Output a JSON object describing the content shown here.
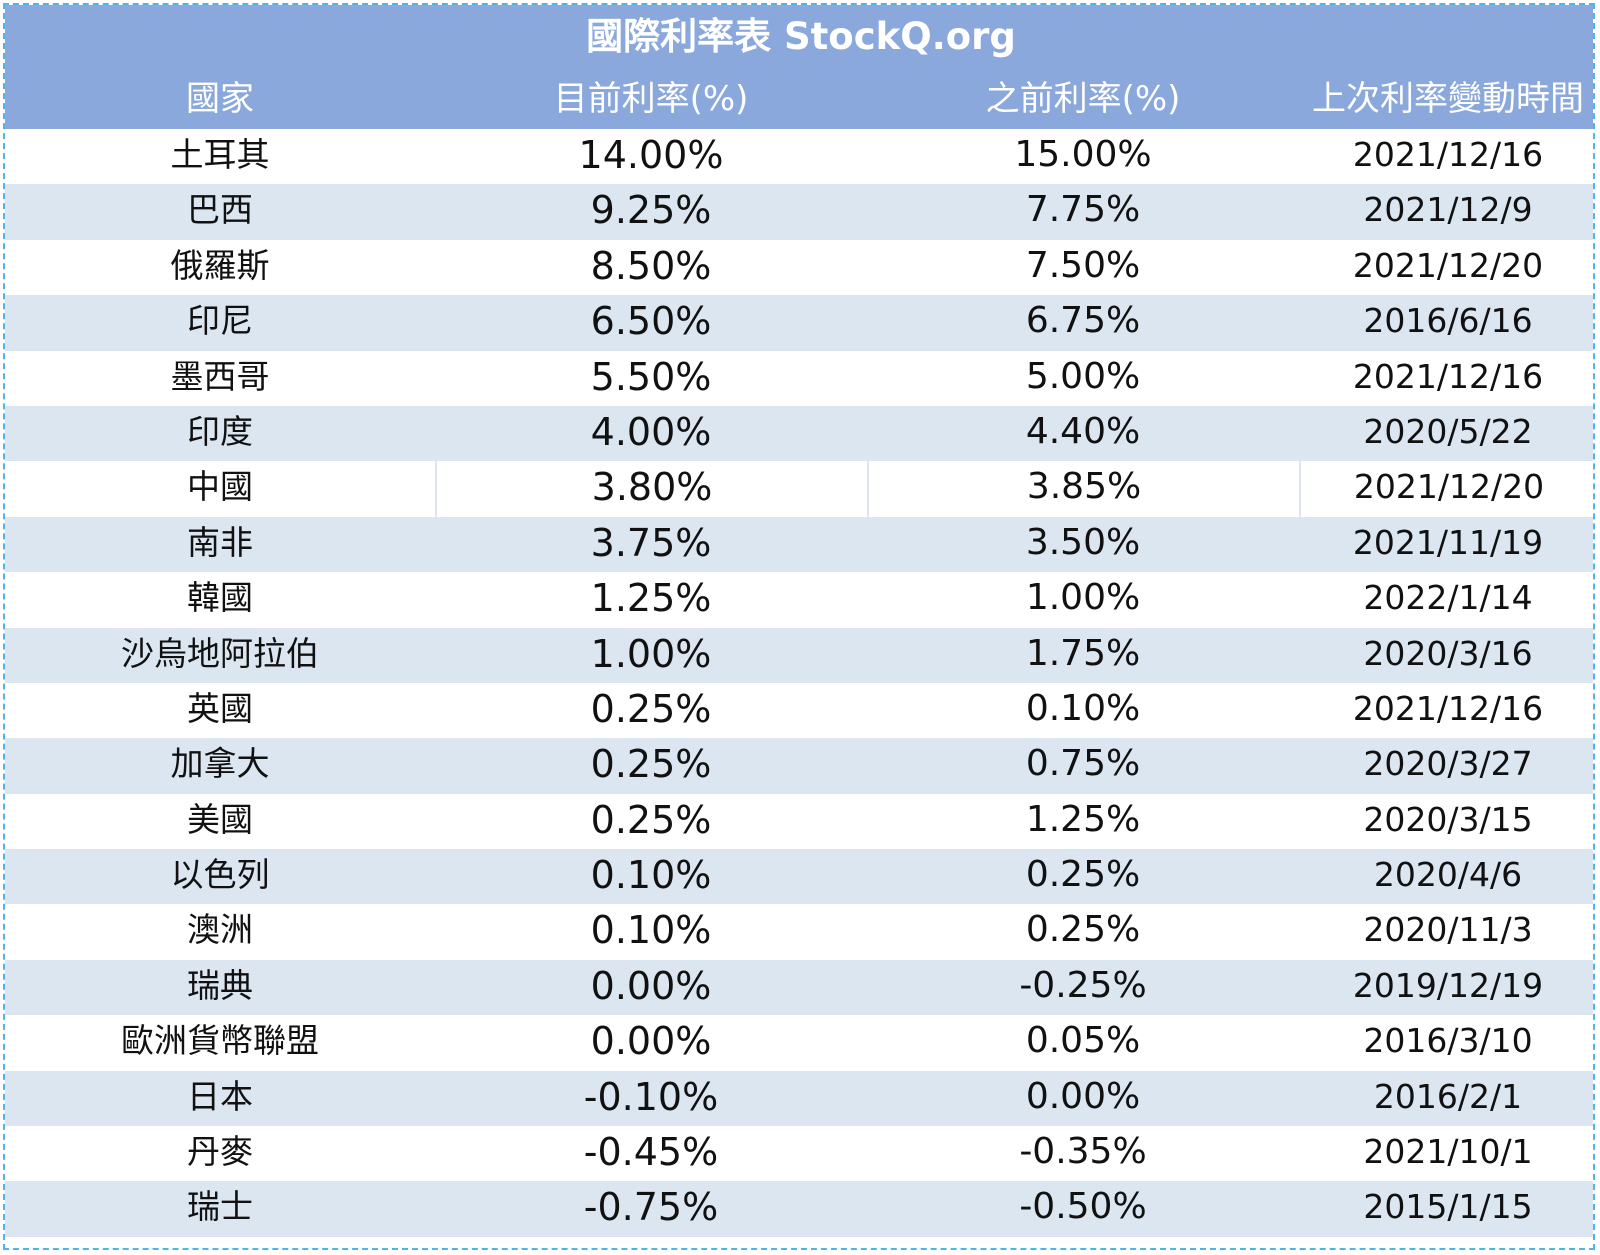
{
  "table": {
    "title": "國際利率表 StockQ.org",
    "headers": {
      "country": "國家",
      "current": "目前利率(%)",
      "previous": "之前利率(%)",
      "changed": "上次利率變動時間"
    },
    "rows": [
      {
        "country": "土耳其",
        "current": "14.00%",
        "previous": "15.00%",
        "changed": "2021/12/16"
      },
      {
        "country": "巴西",
        "current": "9.25%",
        "previous": "7.75%",
        "changed": "2021/12/9"
      },
      {
        "country": "俄羅斯",
        "current": "8.50%",
        "previous": "7.50%",
        "changed": "2021/12/20"
      },
      {
        "country": "印尼",
        "current": "6.50%",
        "previous": "6.75%",
        "changed": "2016/6/16"
      },
      {
        "country": "墨西哥",
        "current": "5.50%",
        "previous": "5.00%",
        "changed": "2021/12/16"
      },
      {
        "country": "印度",
        "current": "4.00%",
        "previous": "4.40%",
        "changed": "2020/5/22"
      },
      {
        "country": "中國",
        "current": "3.80%",
        "previous": "3.85%",
        "changed": "2021/12/20"
      },
      {
        "country": "南非",
        "current": "3.75%",
        "previous": "3.50%",
        "changed": "2021/11/19"
      },
      {
        "country": "韓國",
        "current": "1.25%",
        "previous": "1.00%",
        "changed": "2022/1/14"
      },
      {
        "country": "沙烏地阿拉伯",
        "current": "1.00%",
        "previous": "1.75%",
        "changed": "2020/3/16"
      },
      {
        "country": "英國",
        "current": "0.25%",
        "previous": "0.10%",
        "changed": "2021/12/16"
      },
      {
        "country": "加拿大",
        "current": "0.25%",
        "previous": "0.75%",
        "changed": "2020/3/27"
      },
      {
        "country": "美國",
        "current": "0.25%",
        "previous": "1.25%",
        "changed": "2020/3/15"
      },
      {
        "country": "以色列",
        "current": "0.10%",
        "previous": "0.25%",
        "changed": "2020/4/6"
      },
      {
        "country": "澳洲",
        "current": "0.10%",
        "previous": "0.25%",
        "changed": "2020/11/3"
      },
      {
        "country": "瑞典",
        "current": "0.00%",
        "previous": "-0.25%",
        "changed": "2019/12/19"
      },
      {
        "country": "歐洲貨幣聯盟",
        "current": "0.00%",
        "previous": "0.05%",
        "changed": "2016/3/10"
      },
      {
        "country": "日本",
        "current": "-0.10%",
        "previous": "0.00%",
        "changed": "2016/2/1"
      },
      {
        "country": "丹麥",
        "current": "-0.45%",
        "previous": "-0.35%",
        "changed": "2021/10/1"
      },
      {
        "country": "瑞士",
        "current": "-0.75%",
        "previous": "-0.50%",
        "changed": "2015/1/15"
      }
    ]
  },
  "colors": {
    "header_bg": "#8aa8dc",
    "stripe_bg": "#dce6f1",
    "frame_border": "#4fb3ee"
  }
}
